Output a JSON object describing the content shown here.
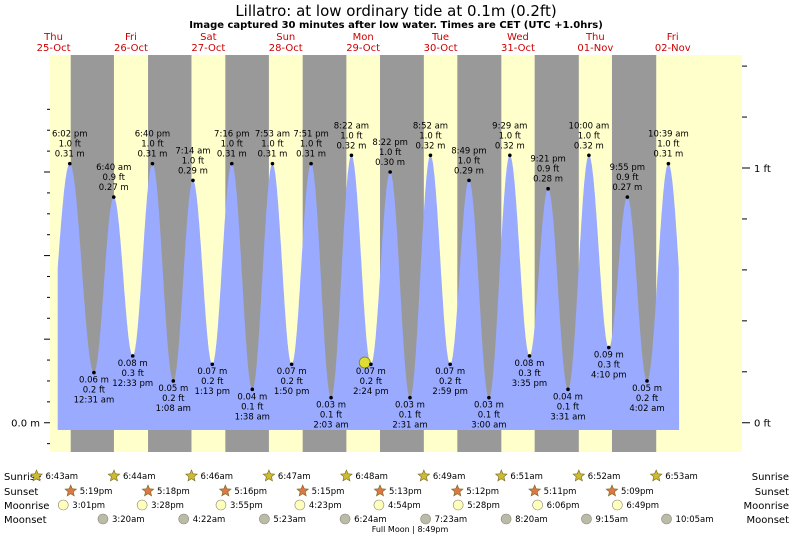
{
  "chart_data": {
    "type": "area",
    "title": "Lillatro: at low  ordinary tide at 0.1m (0.2ft)",
    "subtitle": "Image captured 30 minutes after low water. Times are CET (UTC +1.0hrs)",
    "days": [
      {
        "dow": "Thu",
        "date": "25-Oct"
      },
      {
        "dow": "Fri",
        "date": "26-Oct"
      },
      {
        "dow": "Sat",
        "date": "27-Oct"
      },
      {
        "dow": "Sun",
        "date": "28-Oct"
      },
      {
        "dow": "Mon",
        "date": "29-Oct"
      },
      {
        "dow": "Tue",
        "date": "30-Oct"
      },
      {
        "dow": "Wed",
        "date": "31-Oct"
      },
      {
        "dow": "Thu",
        "date": "01-Nov"
      },
      {
        "dow": "Fri",
        "date": "02-Nov"
      }
    ],
    "y_axis_left": {
      "label": "0.0 m",
      "value": 0.0
    },
    "y_axis_right": [
      {
        "label": "0 ft",
        "value_m": 0.0
      },
      {
        "label": "1 ft",
        "value_m": 0.3048
      }
    ],
    "ylim": [
      -0.035,
      0.44
    ],
    "tides": [
      {
        "type": "high",
        "time": "6:02 pm",
        "ft": "1.0 ft",
        "m": "0.31 m",
        "h": 17.03,
        "v": 0.31
      },
      {
        "type": "low",
        "time": "12:31 am",
        "ft": "0.2 ft",
        "m": "0.06 m",
        "h": 24.52,
        "v": 0.06
      },
      {
        "type": "high",
        "time": "6:40 am",
        "ft": "0.9 ft",
        "m": "0.27 m",
        "h": 30.67,
        "v": 0.27
      },
      {
        "type": "low",
        "time": "12:33 pm",
        "ft": "0.3 ft",
        "m": "0.08 m",
        "h": 36.55,
        "v": 0.08
      },
      {
        "type": "high",
        "time": "6:40 pm",
        "ft": "1.0 ft",
        "m": "0.31 m",
        "h": 42.67,
        "v": 0.31
      },
      {
        "type": "low",
        "time": "1:08 am",
        "ft": "0.2 ft",
        "m": "0.05 m",
        "h": 49.13,
        "v": 0.05
      },
      {
        "type": "high",
        "time": "7:14 am",
        "ft": "1.0 ft",
        "m": "0.29 m",
        "h": 55.23,
        "v": 0.29
      },
      {
        "type": "low",
        "time": "1:13 pm",
        "ft": "0.2 ft",
        "m": "0.07 m",
        "h": 61.22,
        "v": 0.07
      },
      {
        "type": "high",
        "time": "7:16 pm",
        "ft": "1.0 ft",
        "m": "0.31 m",
        "h": 67.27,
        "v": 0.31
      },
      {
        "type": "low",
        "time": "1:38 am",
        "ft": "0.1 ft",
        "m": "0.04 m",
        "h": 73.63,
        "v": 0.04
      },
      {
        "type": "high",
        "time": "7:53 am",
        "ft": "1.0 ft",
        "m": "0.31 m",
        "h": 79.88,
        "v": 0.31
      },
      {
        "type": "low",
        "time": "1:50 pm",
        "ft": "0.2 ft",
        "m": "0.07 m",
        "h": 85.83,
        "v": 0.07
      },
      {
        "type": "high",
        "time": "7:51 pm",
        "ft": "1.0 ft",
        "m": "0.31 m",
        "h": 91.85,
        "v": 0.31
      },
      {
        "type": "low",
        "time": "2:03 am",
        "ft": "0.1 ft",
        "m": "0.03 m",
        "h": 98.05,
        "v": 0.03
      },
      {
        "type": "high",
        "time": "8:22 am",
        "ft": "1.0 ft",
        "m": "0.32 m",
        "h": 104.37,
        "v": 0.32
      },
      {
        "type": "low",
        "time": "2:24 pm",
        "ft": "0.2 ft",
        "m": "0.07 m",
        "h": 110.4,
        "v": 0.07
      },
      {
        "type": "high",
        "time": "8:22 pm",
        "ft": "1.0 ft",
        "m": "0.30 m",
        "h": 116.37,
        "v": 0.3
      },
      {
        "type": "low",
        "time": "2:31 am",
        "ft": "0.1 ft",
        "m": "0.03 m",
        "h": 122.52,
        "v": 0.03
      },
      {
        "type": "high",
        "time": "8:52 am",
        "ft": "1.0 ft",
        "m": "0.32 m",
        "h": 128.87,
        "v": 0.32
      },
      {
        "type": "low",
        "time": "2:59 pm",
        "ft": "0.2 ft",
        "m": "0.07 m",
        "h": 134.98,
        "v": 0.07
      },
      {
        "type": "high",
        "time": "8:49 pm",
        "ft": "1.0 ft",
        "m": "0.29 m",
        "h": 140.82,
        "v": 0.29
      },
      {
        "type": "low",
        "time": "3:00 am",
        "ft": "0.1 ft",
        "m": "0.03 m",
        "h": 147.0,
        "v": 0.03
      },
      {
        "type": "high",
        "time": "9:29 am",
        "ft": "1.0 ft",
        "m": "0.32 m",
        "h": 153.48,
        "v": 0.32
      },
      {
        "type": "low",
        "time": "3:35 pm",
        "ft": "0.3 ft",
        "m": "0.08 m",
        "h": 159.58,
        "v": 0.08
      },
      {
        "type": "high",
        "time": "9:21 pm",
        "ft": "0.9 ft",
        "m": "0.28 m",
        "h": 165.35,
        "v": 0.28
      },
      {
        "type": "low",
        "time": "3:31 am",
        "ft": "0.1 ft",
        "m": "0.04 m",
        "h": 171.52,
        "v": 0.04
      },
      {
        "type": "high",
        "time": "10:00 am",
        "ft": "1.0 ft",
        "m": "0.32 m",
        "h": 178.0,
        "v": 0.32
      },
      {
        "type": "low",
        "time": "4:10 pm",
        "ft": "0.3 ft",
        "m": "0.09 m",
        "h": 184.17,
        "v": 0.09
      },
      {
        "type": "high",
        "time": "9:55 pm",
        "ft": "0.9 ft",
        "m": "0.27 m",
        "h": 189.92,
        "v": 0.27
      },
      {
        "type": "low",
        "time": "4:02 am",
        "ft": "0.2 ft",
        "m": "0.05 m",
        "h": 196.03,
        "v": 0.05
      },
      {
        "type": "high",
        "time": "10:39 am",
        "ft": "1.0 ft",
        "m": "0.31 m",
        "h": 202.65,
        "v": 0.31
      }
    ],
    "capture": {
      "h": 108.5,
      "v": 0.072
    },
    "daylight": [
      {
        "rise": 6.72,
        "set": 17.32
      },
      {
        "rise": 30.73,
        "set": 41.3
      },
      {
        "rise": 54.77,
        "set": 65.27
      },
      {
        "rise": 78.78,
        "set": 89.25
      },
      {
        "rise": 102.8,
        "set": 113.22
      },
      {
        "rise": 126.82,
        "set": 137.2
      },
      {
        "rise": 150.85,
        "set": 161.18
      },
      {
        "rise": 174.87,
        "set": 185.15
      },
      {
        "rise": 198.88,
        "set": null
      }
    ],
    "astro": {
      "labels": [
        "Sunrise",
        "Sunset",
        "Moonrise",
        "Moonset"
      ],
      "sunrise": [
        {
          "time": "6:43am",
          "h": 6.72
        },
        {
          "time": "6:44am",
          "h": 30.73
        },
        {
          "time": "6:46am",
          "h": 54.77
        },
        {
          "time": "6:47am",
          "h": 78.78
        },
        {
          "time": "6:48am",
          "h": 102.8
        },
        {
          "time": "6:49am",
          "h": 126.82
        },
        {
          "time": "6:51am",
          "h": 150.85
        },
        {
          "time": "6:52am",
          "h": 174.87
        },
        {
          "time": "6:53am",
          "h": 198.88
        }
      ],
      "sunset": [
        {
          "time": "5:19pm",
          "h": 17.32
        },
        {
          "time": "5:18pm",
          "h": 41.3
        },
        {
          "time": "5:16pm",
          "h": 65.27
        },
        {
          "time": "5:15pm",
          "h": 89.25
        },
        {
          "time": "5:13pm",
          "h": 113.22
        },
        {
          "time": "5:12pm",
          "h": 137.2
        },
        {
          "time": "5:11pm",
          "h": 161.18
        },
        {
          "time": "5:09pm",
          "h": 185.15
        }
      ],
      "moonrise": [
        {
          "time": "3:01pm",
          "h": 15.02
        },
        {
          "time": "3:28pm",
          "h": 39.47
        },
        {
          "time": "3:55pm",
          "h": 63.92
        },
        {
          "time": "4:23pm",
          "h": 88.38
        },
        {
          "time": "4:54pm",
          "h": 112.9
        },
        {
          "time": "5:28pm",
          "h": 137.47
        },
        {
          "time": "6:06pm",
          "h": 162.1
        },
        {
          "time": "6:49pm",
          "h": 186.82
        }
      ],
      "moonset": [
        {
          "time": "3:20am",
          "h": 27.33
        },
        {
          "time": "4:22am",
          "h": 52.37
        },
        {
          "time": "5:23am",
          "h": 77.38
        },
        {
          "time": "6:24am",
          "h": 102.4
        },
        {
          "time": "7:23am",
          "h": 127.38
        },
        {
          "time": "8:20am",
          "h": 152.33
        },
        {
          "time": "9:15am",
          "h": 177.25
        },
        {
          "time": "10:05am",
          "h": 202.08
        }
      ],
      "full_moon": "Full Moon | 8:49pm"
    },
    "colors": {
      "night": "#999999",
      "day": "#ffffcc",
      "water": "#99aaff",
      "day_label": "#cc0000",
      "sun": "#ccbb33",
      "sunset": "#dd7744",
      "moonrise": "#ffffbb",
      "moonset": "#bbbbaa",
      "capture_marker": "#dddd33"
    }
  }
}
